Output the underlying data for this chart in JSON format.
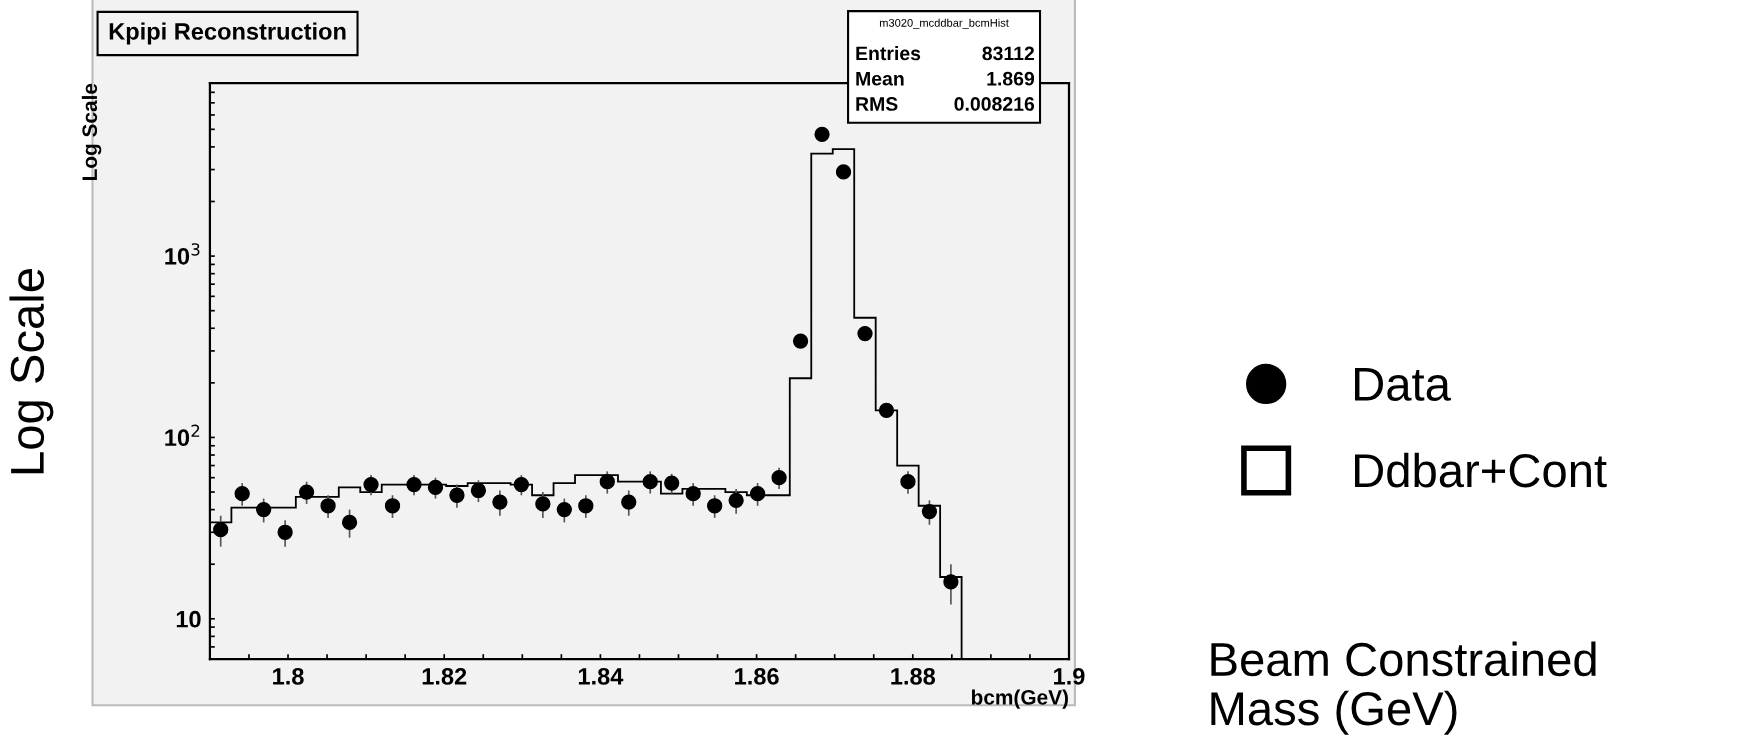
{
  "chart_data": {
    "type": "histogram",
    "title": "Kpipi Reconstruction",
    "xlabel": "bcm(GeV)",
    "ylabel": "Log Scale",
    "annotations": [
      "m3020_mcddbar_bcmHist",
      "Entries",
      "83112",
      "Mean",
      "1.869",
      "RMS",
      "0.008216",
      "Log Scale",
      "Beam Constrained\nMass (GeV)"
    ],
    "series": [
      {
        "name": "Data",
        "type": "scatter",
        "color": "#000000",
        "marker": "circle",
        "x": [
          1.79138,
          1.79413,
          1.79688,
          1.79963,
          1.80238,
          1.80513,
          1.80788,
          1.81063,
          1.81338,
          1.81613,
          1.81888,
          1.82163,
          1.82438,
          1.82713,
          1.82988,
          1.83263,
          1.83538,
          1.83813,
          1.84088,
          1.84363,
          1.84638,
          1.84913,
          1.85188,
          1.85463,
          1.85738,
          1.86013,
          1.86288,
          1.86563,
          1.86838,
          1.87113,
          1.87388,
          1.87663,
          1.87938,
          1.88213,
          1.88488
        ],
        "values": [
          31,
          49,
          40,
          30,
          50,
          42,
          34,
          55,
          42,
          55,
          53,
          48,
          51,
          44,
          55,
          43,
          40,
          42,
          57,
          44,
          57,
          56,
          49,
          42,
          45,
          49,
          60,
          340,
          4690,
          2910,
          374,
          141,
          57,
          39,
          16
        ],
        "errors": [
          6,
          7,
          6,
          5,
          7,
          6,
          6,
          7,
          6,
          7,
          7,
          7,
          7,
          7,
          7,
          7,
          6,
          6,
          8,
          7,
          8,
          7,
          7,
          6,
          7,
          7,
          8,
          18,
          68,
          54,
          19,
          12,
          8,
          6,
          4
        ]
      },
      {
        "name": "Ddbar+Cont",
        "color": "#000000",
        "bins": [
          1.79,
          1.79275,
          1.7955,
          1.79825,
          1.801,
          1.80375,
          1.8065,
          1.80925,
          1.812,
          1.81475,
          1.8175,
          1.82025,
          1.823,
          1.82575,
          1.8285,
          1.83125,
          1.834,
          1.83675,
          1.8395,
          1.84225,
          1.845,
          1.84775,
          1.8505,
          1.85325,
          1.856,
          1.85875,
          1.8615,
          1.86425,
          1.867,
          1.86975,
          1.8725,
          1.87525,
          1.878,
          1.88075,
          1.8835,
          1.88625
        ],
        "values": [
          34,
          41,
          41,
          41,
          47,
          47,
          53,
          50,
          55,
          55,
          55,
          54,
          56,
          56,
          55,
          48,
          56,
          62,
          62,
          57,
          57,
          49,
          52,
          52,
          50,
          48,
          48,
          212,
          3670,
          3890,
          457,
          141,
          70,
          42,
          17
        ]
      }
    ],
    "log": "y",
    "xlim": [
      1.79,
      1.9
    ],
    "ylim": [
      6,
      9000
    ],
    "xticks": [
      {
        "value": 1.795,
        "label": null
      },
      1.8,
      {
        "value": 1.805,
        "label": null
      },
      {
        "value": 1.81,
        "label": null
      },
      {
        "value": 1.815,
        "label": null
      },
      1.82,
      {
        "value": 1.825,
        "label": null
      },
      {
        "value": 1.83,
        "label": null
      },
      {
        "value": 1.835,
        "label": null
      },
      1.84,
      {
        "value": 1.845,
        "label": null
      },
      {
        "value": 1.85,
        "label": null
      },
      {
        "value": 1.855,
        "label": null
      },
      1.86,
      {
        "value": 1.865,
        "label": null
      },
      {
        "value": 1.87,
        "label": null
      },
      {
        "value": 1.875,
        "label": null
      },
      1.88,
      {
        "value": 1.885,
        "label": null
      },
      {
        "value": 1.89,
        "label": null
      },
      {
        "value": 1.895,
        "label": null
      },
      1.9
    ],
    "yticks": [
      {
        "value": 6,
        "label": null
      },
      {
        "value": 7,
        "label": null
      },
      {
        "value": 8,
        "label": null
      },
      {
        "value": 9,
        "label": null
      },
      10,
      {
        "value": 20,
        "label": null
      },
      {
        "value": 30,
        "label": null
      },
      {
        "value": 40,
        "label": null
      },
      {
        "value": 50,
        "label": null
      },
      {
        "value": 60,
        "label": null
      },
      {
        "value": 70,
        "label": null
      },
      {
        "value": 80,
        "label": null
      },
      {
        "value": 90,
        "label": null
      },
      {
        "value": 100,
        "label": "10$^{2}$"
      },
      {
        "value": 200,
        "label": null
      },
      {
        "value": 300,
        "label": null
      },
      {
        "value": 400,
        "label": null
      },
      {
        "value": 500,
        "label": null
      },
      {
        "value": 600,
        "label": null
      },
      {
        "value": 700,
        "label": null
      },
      {
        "value": 800,
        "label": null
      },
      {
        "value": 900,
        "label": null
      },
      {
        "value": 1000,
        "label": "10$^{3}$"
      },
      {
        "value": 2000,
        "label": null
      },
      {
        "value": 3000,
        "label": null
      },
      {
        "value": 4000,
        "label": null
      },
      {
        "value": 5000,
        "label": null
      },
      {
        "value": 6000,
        "label": null
      },
      {
        "value": 7000,
        "label": null
      },
      {
        "value": 8000,
        "label": null
      },
      {
        "value": 9000,
        "label": null
      }
    ],
    "grid": false,
    "legend": "right"
  }
}
